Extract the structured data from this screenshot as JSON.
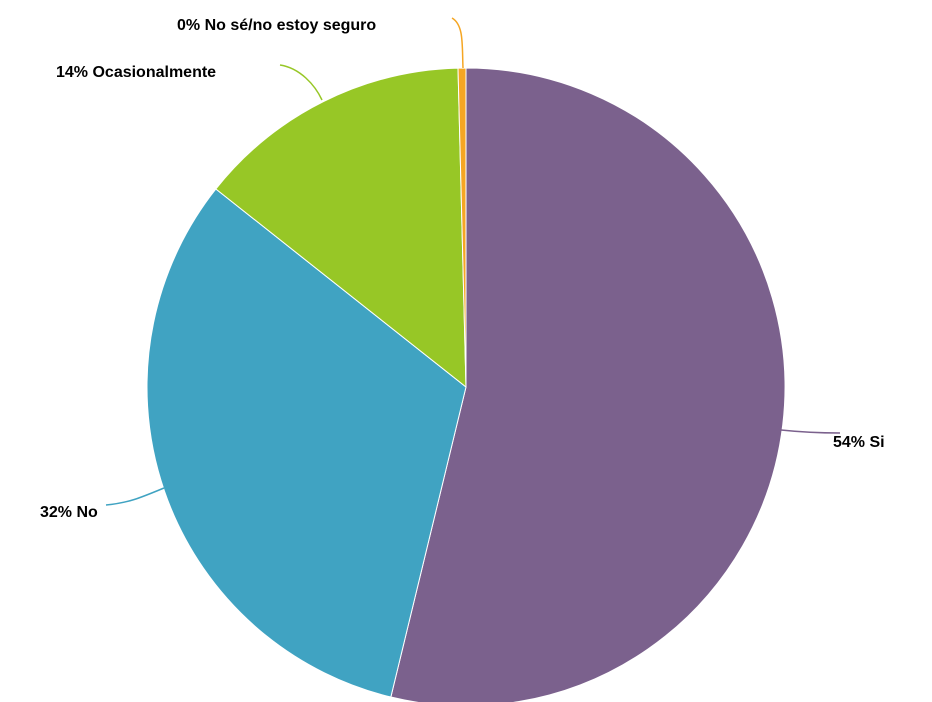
{
  "chart_data": {
    "type": "pie",
    "title": "",
    "slices": [
      {
        "label": "Si",
        "value": 54,
        "value_label": "54%",
        "color": "#7b618d"
      },
      {
        "label": "No",
        "value": 32,
        "value_label": "32%",
        "color": "#40a3c2"
      },
      {
        "label": "Ocasionalmente",
        "value": 14,
        "value_label": "14%",
        "color": "#97c726"
      },
      {
        "label": "No sé/no estoy seguro",
        "value": 0.4,
        "value_label": "0%",
        "color": "#f5a623"
      }
    ],
    "start": "12 o'clock",
    "direction": "clockwise",
    "legend": "none",
    "labels": "outside with leader lines"
  }
}
